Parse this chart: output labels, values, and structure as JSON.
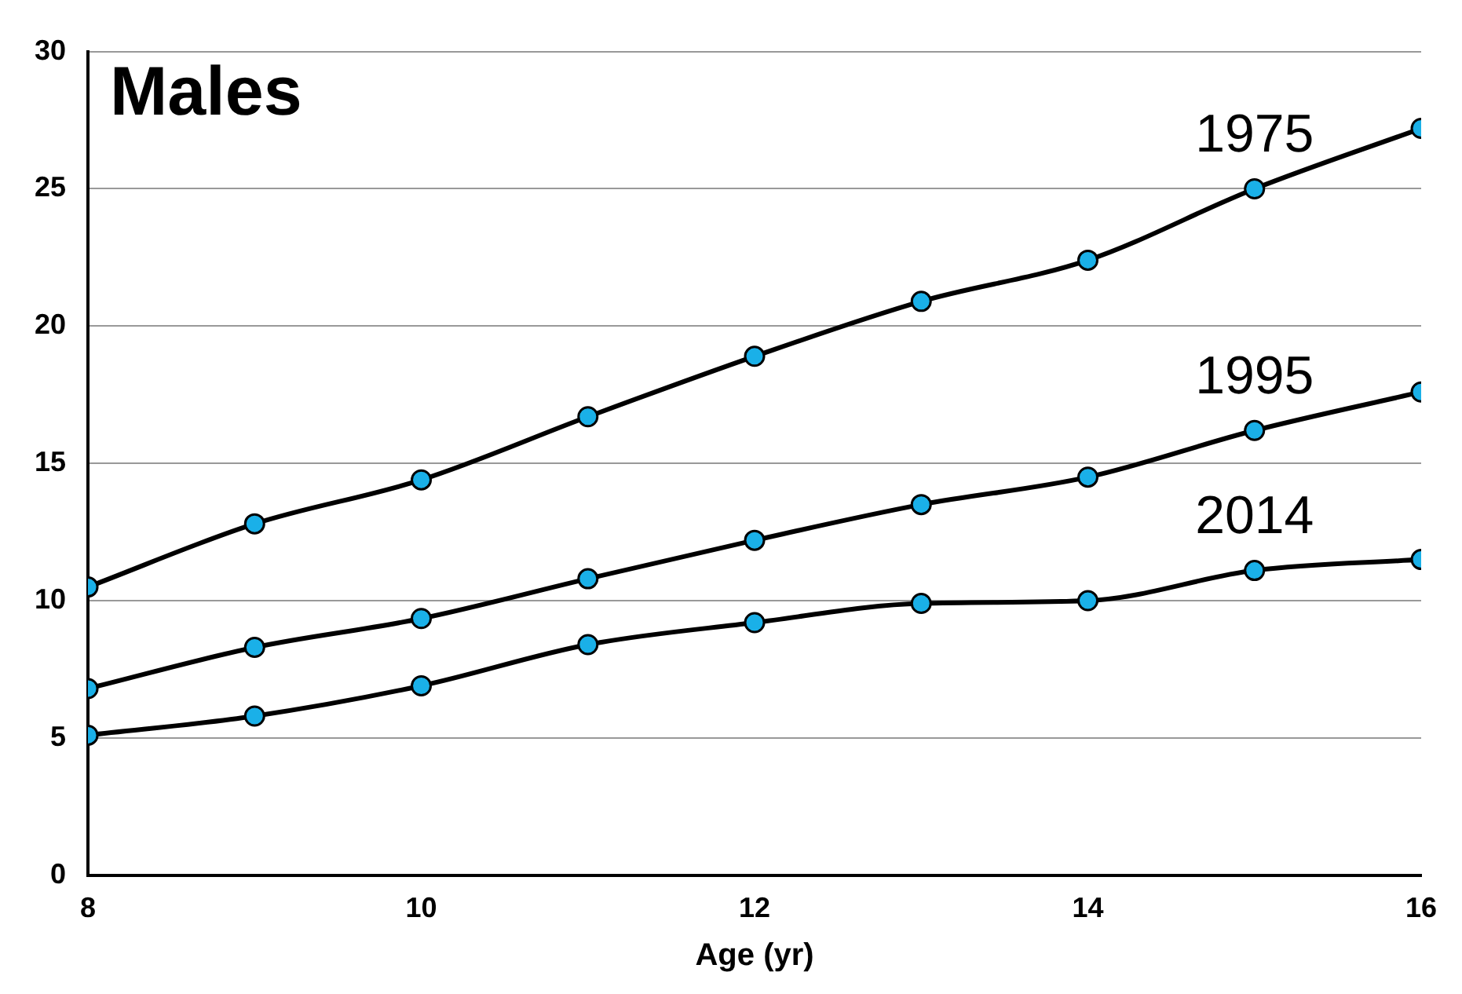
{
  "chart_data": {
    "type": "line",
    "title": "Males",
    "xlabel": "Age (yr)",
    "x": [
      8,
      9,
      10,
      11,
      12,
      13,
      14,
      15,
      16
    ],
    "series": [
      {
        "name": "1975",
        "color": "#000000",
        "values": [
          10.5,
          12.8,
          14.4,
          16.7,
          18.9,
          20.9,
          22.4,
          25.0,
          27.2
        ]
      },
      {
        "name": "1995",
        "color": "#000000",
        "values": [
          6.8,
          8.3,
          9.35,
          10.8,
          12.2,
          13.5,
          14.5,
          16.2,
          17.6
        ]
      },
      {
        "name": "2014",
        "color": "#000000",
        "values": [
          5.1,
          5.8,
          6.9,
          8.4,
          9.2,
          9.9,
          10.0,
          11.1,
          11.5
        ]
      }
    ],
    "xlim": [
      8,
      16
    ],
    "xticks": [
      8,
      10,
      12,
      14,
      16
    ],
    "ylim": [
      0,
      30
    ],
    "yticks": [
      0,
      5,
      10,
      15,
      20,
      25,
      30
    ],
    "grid": "y",
    "legend": false,
    "marker": "circle",
    "line_style": "solid"
  }
}
